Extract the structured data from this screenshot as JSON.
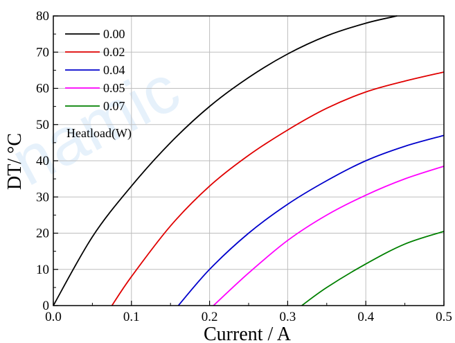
{
  "watermark": "namic",
  "chart_data": {
    "type": "line",
    "title": "",
    "xlabel": "Current / A",
    "ylabel": "DT/ °C",
    "xlim": [
      0,
      0.5
    ],
    "ylim": [
      0,
      80
    ],
    "xticks": [
      "0.0",
      "0.1",
      "0.2",
      "0.3",
      "0.4",
      "0.5"
    ],
    "yticks": [
      "0",
      "10",
      "20",
      "30",
      "40",
      "50",
      "60",
      "70",
      "80"
    ],
    "grid": true,
    "legend_position": "top-left",
    "legend_title": "Heatload(W)",
    "series": [
      {
        "name": "0.00",
        "color": "#000000",
        "x": [
          0.0,
          0.05,
          0.1,
          0.15,
          0.2,
          0.25,
          0.3,
          0.35,
          0.4,
          0.44
        ],
        "y": [
          0,
          19,
          33,
          45,
          55,
          63,
          69.5,
          74.5,
          78,
          80
        ]
      },
      {
        "name": "0.02",
        "color": "#e00000",
        "x": [
          0.075,
          0.1,
          0.15,
          0.2,
          0.25,
          0.3,
          0.35,
          0.4,
          0.45,
          0.5
        ],
        "y": [
          0,
          8,
          22,
          33,
          41.5,
          48.5,
          54.5,
          59,
          62,
          64.5
        ]
      },
      {
        "name": "0.04",
        "color": "#0000cc",
        "x": [
          0.16,
          0.2,
          0.25,
          0.3,
          0.35,
          0.4,
          0.45,
          0.5
        ],
        "y": [
          0,
          10,
          20,
          28,
          34.5,
          40,
          44,
          47
        ]
      },
      {
        "name": "0.05",
        "color": "#ff00ff",
        "x": [
          0.205,
          0.25,
          0.3,
          0.35,
          0.4,
          0.45,
          0.5
        ],
        "y": [
          0,
          9,
          18,
          25,
          30.5,
          35,
          38.5
        ]
      },
      {
        "name": "0.07",
        "color": "#008000",
        "x": [
          0.318,
          0.35,
          0.4,
          0.45,
          0.5
        ],
        "y": [
          0,
          5,
          11.5,
          17,
          20.5
        ]
      }
    ]
  }
}
